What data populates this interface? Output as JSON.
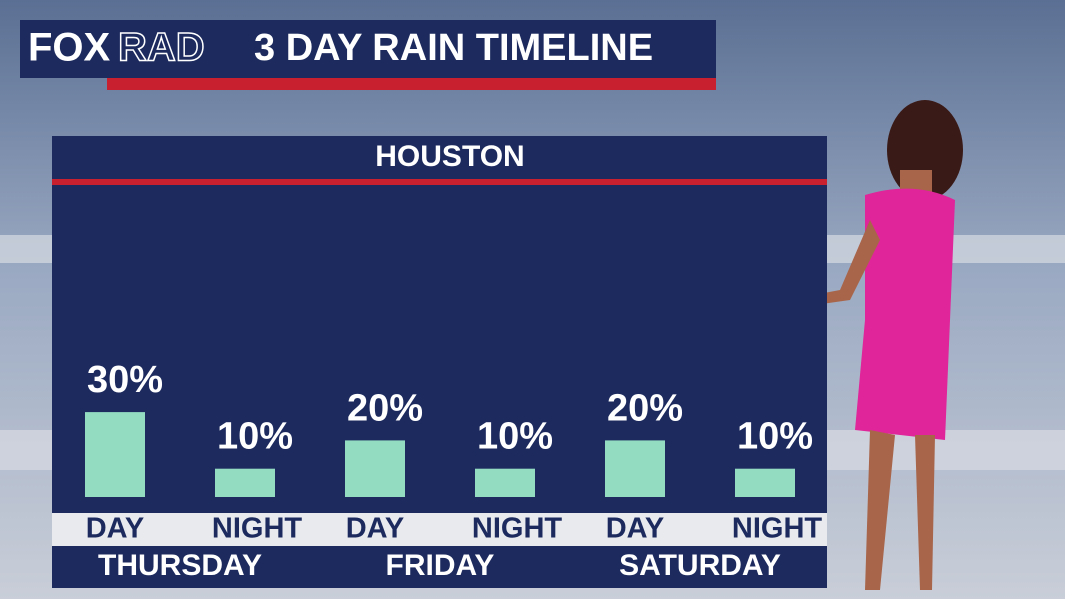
{
  "logo": {
    "bold": "FOX",
    "light": "RAD"
  },
  "chart_data": {
    "type": "bar",
    "title": "3 DAY RAIN TIMELINE",
    "subtitle": "HOUSTON",
    "categories": [
      "DAY",
      "NIGHT",
      "DAY",
      "NIGHT",
      "DAY",
      "NIGHT"
    ],
    "groups": [
      "THURSDAY",
      "FRIDAY",
      "SATURDAY"
    ],
    "values": [
      30,
      10,
      20,
      10,
      20,
      10
    ],
    "value_labels": [
      "30%",
      "10%",
      "20%",
      "10%",
      "20%",
      "10%"
    ],
    "color": "#93dcc2"
  }
}
